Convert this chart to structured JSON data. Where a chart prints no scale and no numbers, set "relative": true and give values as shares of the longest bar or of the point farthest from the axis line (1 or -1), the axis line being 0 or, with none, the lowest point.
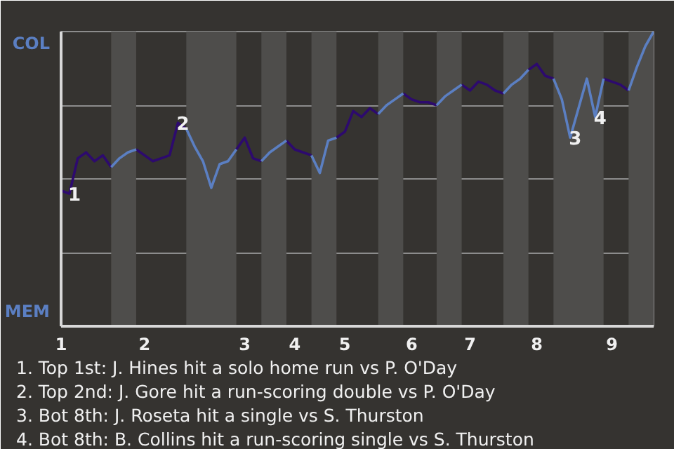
{
  "chart_data": {
    "type": "line",
    "relative": true,
    "categories": [
      "1",
      null,
      null,
      null,
      null,
      null,
      null,
      null,
      null,
      null,
      "2",
      null,
      null,
      null,
      null,
      null,
      null,
      null,
      null,
      null,
      null,
      null,
      "3",
      null,
      null,
      null,
      null,
      null,
      "4",
      null,
      null,
      null,
      null,
      null,
      "5",
      null,
      null,
      null,
      null,
      null,
      null,
      null,
      "6",
      null,
      null,
      null,
      null,
      null,
      null,
      "7",
      null,
      null,
      null,
      null,
      null,
      null,
      null,
      "8",
      null,
      null,
      null,
      null,
      null,
      null,
      null,
      null,
      "9",
      null,
      null,
      null,
      null,
      null
    ],
    "grid": "y",
    "marker": "none",
    "line_style": "solid",
    "series": [
      {
        "color": "#2d0a6e",
        "values": [
          0.46,
          0.45,
          0.57,
          0.59,
          0.56,
          0.58,
          0.54,
          null,
          null,
          0.6,
          0.58,
          0.56,
          0.57,
          0.58,
          0.69,
          0.67,
          null,
          null,
          null,
          null,
          null,
          0.6,
          0.64,
          0.57,
          0.56,
          null,
          null,
          0.63,
          0.6,
          0.59,
          0.58,
          null,
          null,
          0.64,
          0.66,
          0.73,
          0.71,
          0.74,
          0.72,
          null,
          null,
          0.79,
          0.77,
          0.76,
          0.76,
          0.75,
          null,
          null,
          0.82,
          0.8,
          0.83,
          0.82,
          0.8,
          0.79,
          null,
          null,
          0.87,
          0.89,
          0.85,
          0.84,
          null,
          null,
          null,
          null,
          null,
          0.84,
          0.83,
          0.82,
          0.8,
          null,
          null,
          null
        ]
      },
      {
        "color": "#5b7fc2",
        "values": [
          null,
          null,
          null,
          null,
          null,
          null,
          0.54,
          0.57,
          0.59,
          0.6,
          null,
          null,
          null,
          null,
          null,
          0.67,
          0.61,
          0.56,
          0.47,
          0.55,
          0.56,
          0.6,
          null,
          null,
          0.56,
          0.59,
          0.61,
          0.63,
          null,
          null,
          0.58,
          0.52,
          0.63,
          0.64,
          null,
          null,
          null,
          null,
          0.72,
          0.75,
          0.77,
          0.79,
          null,
          null,
          null,
          0.75,
          0.78,
          0.8,
          0.82,
          null,
          null,
          null,
          null,
          0.79,
          0.82,
          0.84,
          0.87,
          null,
          null,
          0.84,
          0.77,
          0.64,
          0.74,
          0.84,
          0.71,
          0.84,
          null,
          null,
          0.8,
          0.88,
          0.95,
          1.0
        ]
      }
    ],
    "annotations": [
      "COL",
      "MEM",
      {
        "text": "1",
        "y": 0.45
      },
      {
        "text": "2",
        "y": 0.69
      },
      {
        "text": "3",
        "y": 0.64
      },
      {
        "text": "4",
        "y": 0.71
      },
      "1. Top 1st: J. Hines hit a solo home run vs P. O'Day",
      "2. Top 2nd: J. Gore hit a run-scoring double vs P. O'Day",
      "3. Bot 8th: J. Roseta hit a single vs S. Thurston",
      "4. Bot 8th: B. Collins hit a run-scoring single vs S. Thurston"
    ]
  }
}
